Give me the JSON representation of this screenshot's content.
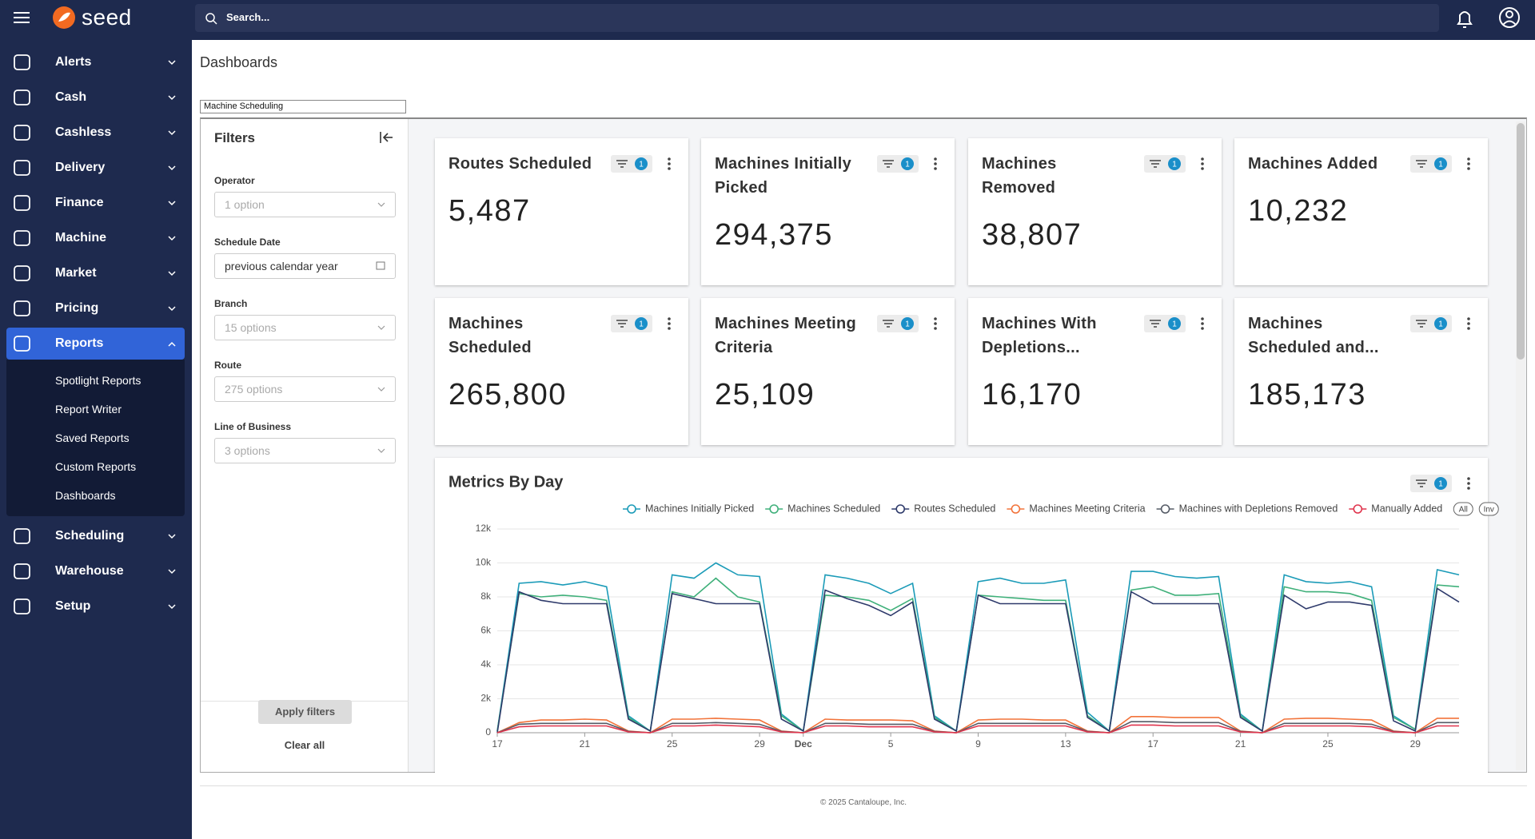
{
  "header": {
    "logo": "seed",
    "search_placeholder": "Search..."
  },
  "sidebar": {
    "items": [
      {
        "label": "Alerts"
      },
      {
        "label": "Cash"
      },
      {
        "label": "Cashless"
      },
      {
        "label": "Delivery"
      },
      {
        "label": "Finance"
      },
      {
        "label": "Machine"
      },
      {
        "label": "Market"
      },
      {
        "label": "Pricing"
      },
      {
        "label": "Reports",
        "children": [
          "Spotlight Reports",
          "Report Writer",
          "Saved Reports",
          "Custom Reports",
          "Dashboards"
        ]
      },
      {
        "label": "Scheduling"
      },
      {
        "label": "Warehouse"
      },
      {
        "label": "Setup"
      }
    ]
  },
  "page": {
    "title": "Dashboards",
    "dashboard_select": "Machine Scheduling"
  },
  "filters": {
    "title": "Filters",
    "fields": [
      {
        "label": "Operator",
        "value": "1 option"
      },
      {
        "label": "Schedule Date",
        "value": "previous calendar year"
      },
      {
        "label": "Branch",
        "value": "15 options"
      },
      {
        "label": "Route",
        "value": "275 options"
      },
      {
        "label": "Line of Business",
        "value": "3 options"
      }
    ],
    "apply": "Apply filters",
    "clear": "Clear all"
  },
  "cards": [
    {
      "title": "Routes Scheduled",
      "value": "5,487",
      "filter_count": 1
    },
    {
      "title": "Machines Initially Picked",
      "value": "294,375",
      "filter_count": 1
    },
    {
      "title": "Machines Removed",
      "value": "38,807",
      "filter_count": 1
    },
    {
      "title": "Machines Added",
      "value": "10,232",
      "filter_count": 1
    },
    {
      "title": "Machines Scheduled",
      "value": "265,800",
      "filter_count": 1
    },
    {
      "title": "Machines Meeting Criteria",
      "value": "25,109",
      "filter_count": 1
    },
    {
      "title": "Machines With Depletions...",
      "value": "16,170",
      "filter_count": 1
    },
    {
      "title": "Machines Scheduled and...",
      "value": "185,173",
      "filter_count": 1
    }
  ],
  "chart_data": {
    "type": "line",
    "title": "Metrics By Day",
    "filter_count": 1,
    "legend_buttons": [
      "All",
      "Inv"
    ],
    "categories": [
      "17",
      null,
      null,
      null,
      "21",
      null,
      null,
      null,
      "25",
      null,
      null,
      null,
      "29",
      null,
      "Dec",
      null,
      null,
      null,
      "5",
      null,
      null,
      null,
      "9",
      null,
      null,
      null,
      "13",
      null,
      null,
      null,
      "17",
      null,
      null,
      null,
      "21",
      null,
      null,
      null,
      "25",
      null,
      null,
      null,
      "29",
      null,
      null
    ],
    "ylim": [
      0,
      12000
    ],
    "yticks": [
      0,
      {
        "value": 2000,
        "label": "2k"
      },
      {
        "value": 4000,
        "label": "4k"
      },
      {
        "value": 6000,
        "label": "6k"
      },
      {
        "value": 8000,
        "label": "8k"
      },
      {
        "value": 10000,
        "label": "10k"
      },
      {
        "value": 12000,
        "label": "12k"
      }
    ],
    "grid": true,
    "series": [
      {
        "name": "Machines Initially Picked",
        "color": "#1b9bb8",
        "values": [
          100,
          8800,
          8900,
          8700,
          8900,
          8600,
          1000,
          100,
          9300,
          9100,
          10000,
          9300,
          9200,
          1100,
          100,
          9300,
          9100,
          8800,
          8200,
          8800,
          1000,
          100,
          8900,
          9100,
          8800,
          8800,
          9000,
          1200,
          100,
          9500,
          9500,
          9200,
          9100,
          9200,
          1100,
          100,
          9300,
          8900,
          8800,
          8900,
          8600,
          1000,
          200,
          9600,
          9300
        ]
      },
      {
        "name": "Machines Scheduled",
        "color": "#3fb07a",
        "values": [
          100,
          8200,
          8000,
          8100,
          8000,
          7800,
          900,
          100,
          8300,
          8000,
          9100,
          8000,
          7700,
          1000,
          100,
          8100,
          8000,
          7800,
          7200,
          7900,
          900,
          100,
          8100,
          8000,
          7900,
          7800,
          7800,
          1000,
          100,
          8400,
          8600,
          8100,
          8100,
          8200,
          1000,
          100,
          8600,
          8300,
          8300,
          8200,
          7800,
          900,
          200,
          8700,
          8600
        ]
      },
      {
        "name": "Routes Scheduled",
        "color": "#2e3a6b",
        "values": [
          0,
          8300,
          7800,
          7600,
          7600,
          7600,
          800,
          100,
          8200,
          7900,
          7600,
          7600,
          7600,
          800,
          100,
          8400,
          7900,
          7500,
          6900,
          7700,
          800,
          100,
          8100,
          7600,
          7600,
          7600,
          7600,
          900,
          100,
          8300,
          7600,
          7600,
          7600,
          7600,
          900,
          100,
          8100,
          7300,
          7700,
          7700,
          7500,
          700,
          100,
          8500,
          7700
        ]
      },
      {
        "name": "Machines Meeting Criteria",
        "color": "#f2733a",
        "values": [
          0,
          600,
          750,
          750,
          800,
          750,
          100,
          0,
          800,
          800,
          850,
          800,
          750,
          100,
          0,
          800,
          750,
          750,
          750,
          700,
          100,
          0,
          750,
          800,
          800,
          750,
          750,
          100,
          0,
          950,
          950,
          900,
          900,
          900,
          100,
          0,
          800,
          850,
          850,
          800,
          750,
          100,
          0,
          850,
          850
        ]
      },
      {
        "name": "Machines with Depletions Removed",
        "color": "#555b66",
        "values": [
          0,
          500,
          550,
          550,
          550,
          550,
          80,
          0,
          550,
          550,
          600,
          550,
          500,
          80,
          0,
          550,
          550,
          500,
          500,
          500,
          80,
          0,
          550,
          550,
          550,
          550,
          550,
          80,
          0,
          650,
          650,
          600,
          600,
          600,
          80,
          0,
          550,
          550,
          550,
          550,
          500,
          80,
          0,
          600,
          600
        ]
      },
      {
        "name": "Manually Added",
        "color": "#e0344d",
        "values": [
          0,
          350,
          400,
          400,
          400,
          400,
          50,
          0,
          400,
          400,
          450,
          400,
          350,
          50,
          0,
          400,
          400,
          350,
          350,
          350,
          50,
          0,
          400,
          400,
          400,
          400,
          400,
          50,
          0,
          450,
          450,
          400,
          400,
          400,
          50,
          0,
          400,
          400,
          400,
          400,
          350,
          50,
          0,
          400,
          400
        ]
      }
    ]
  },
  "footer": "© 2025 Cantaloupe, Inc."
}
